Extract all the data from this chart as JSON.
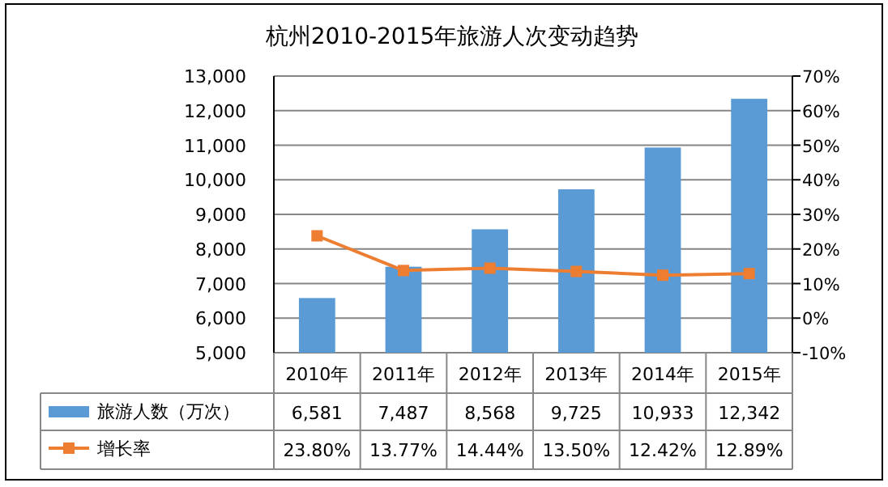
{
  "chart_data": {
    "type": "bar",
    "title": "杭州2010-2015年旅游人次变动趋势",
    "categories": [
      "2010年",
      "2011年",
      "2012年",
      "2013年",
      "2014年",
      "2015年"
    ],
    "series": [
      {
        "name": "旅游人数（万次）",
        "color": "#5b9bd5",
        "values": [
          6581,
          7487,
          8568,
          9725,
          10933,
          12342
        ],
        "value_labels": [
          "6,581",
          "7,487",
          "8,568",
          "9,725",
          "10,933",
          "12,342"
        ]
      },
      {
        "name": "增长率",
        "type": "line",
        "axis": "y2",
        "color": "#ed7d31",
        "marker": "square",
        "values": [
          23.8,
          13.77,
          14.44,
          13.5,
          12.42,
          12.89
        ],
        "value_labels": [
          "23.80%",
          "13.77%",
          "14.44%",
          "13.50%",
          "12.42%",
          "12.89%"
        ]
      }
    ],
    "ylim": [
      5000,
      13000
    ],
    "yticks": [
      {
        "value": 5000,
        "label": "5,000"
      },
      {
        "value": 6000,
        "label": "6,000"
      },
      {
        "value": 7000,
        "label": "7,000"
      },
      {
        "value": 8000,
        "label": "8,000"
      },
      {
        "value": 9000,
        "label": "9,000"
      },
      {
        "value": 10000,
        "label": "10,000"
      },
      {
        "value": 11000,
        "label": "11,000"
      },
      {
        "value": 12000,
        "label": "12,000"
      },
      {
        "value": 13000,
        "label": "13,000"
      }
    ],
    "y2lim": [
      -10,
      70
    ],
    "y2ticks": [
      {
        "value": -10,
        "label": "-10%"
      },
      {
        "value": 0,
        "label": "0%"
      },
      {
        "value": 10,
        "label": "10%"
      },
      {
        "value": 20,
        "label": "20%"
      },
      {
        "value": 30,
        "label": "30%"
      },
      {
        "value": 40,
        "label": "40%"
      },
      {
        "value": 50,
        "label": "50%"
      },
      {
        "value": 60,
        "label": "60%"
      },
      {
        "value": 70,
        "label": "70%"
      }
    ],
    "grid": "y",
    "legend": "bottom"
  }
}
